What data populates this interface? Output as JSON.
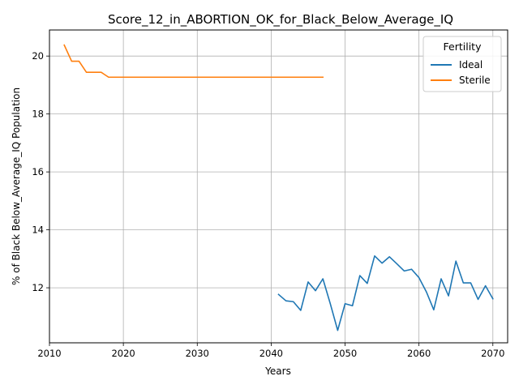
{
  "chart_data": {
    "type": "line",
    "title": "Score_12_in_ABORTION_OK_for_Black_Below_Average_IQ",
    "xlabel": "Years",
    "ylabel": "% of Black Below_Average_IQ Population",
    "xlim": [
      2010,
      2072
    ],
    "ylim": [
      10.1,
      20.9
    ],
    "xticks": [
      2010,
      2020,
      2030,
      2040,
      2050,
      2060,
      2070
    ],
    "yticks": [
      12,
      14,
      16,
      18,
      20
    ],
    "grid": true,
    "legend": {
      "title": "Fertility",
      "placement": "top-right"
    },
    "series": [
      {
        "name": "Ideal",
        "color": "#1f77b4",
        "x": [
          2041,
          2042,
          2043,
          2044,
          2045,
          2046,
          2047,
          2048,
          2049,
          2050,
          2051,
          2052,
          2053,
          2054,
          2055,
          2056,
          2057,
          2058,
          2059,
          2060,
          2061,
          2062,
          2063,
          2064,
          2065,
          2066,
          2067,
          2068,
          2069,
          2070
        ],
        "y": [
          11.77,
          11.55,
          11.52,
          11.22,
          12.2,
          11.9,
          12.31,
          11.45,
          10.53,
          11.45,
          11.38,
          12.42,
          12.15,
          13.1,
          12.85,
          13.07,
          12.83,
          12.58,
          12.64,
          12.35,
          11.86,
          11.24,
          12.31,
          11.72,
          12.92,
          12.17,
          12.17,
          11.6,
          12.07,
          11.62
        ]
      },
      {
        "name": "Sterile",
        "color": "#ff7f0e",
        "x": [
          2012,
          2013,
          2014,
          2015,
          2016,
          2017,
          2018,
          2019,
          2020,
          2021,
          2022,
          2023,
          2024,
          2025,
          2026,
          2027,
          2028,
          2029,
          2030,
          2031,
          2032,
          2033,
          2034,
          2035,
          2036,
          2037,
          2038,
          2039,
          2040,
          2041,
          2042,
          2043,
          2044,
          2045,
          2046,
          2047
        ],
        "y": [
          20.38,
          19.82,
          19.82,
          19.44,
          19.44,
          19.44,
          19.27,
          19.27,
          19.27,
          19.27,
          19.27,
          19.27,
          19.27,
          19.27,
          19.27,
          19.27,
          19.27,
          19.27,
          19.27,
          19.27,
          19.27,
          19.27,
          19.27,
          19.27,
          19.27,
          19.27,
          19.27,
          19.27,
          19.27,
          19.27,
          19.27,
          19.27,
          19.27,
          19.27,
          19.27,
          19.27
        ]
      }
    ]
  }
}
